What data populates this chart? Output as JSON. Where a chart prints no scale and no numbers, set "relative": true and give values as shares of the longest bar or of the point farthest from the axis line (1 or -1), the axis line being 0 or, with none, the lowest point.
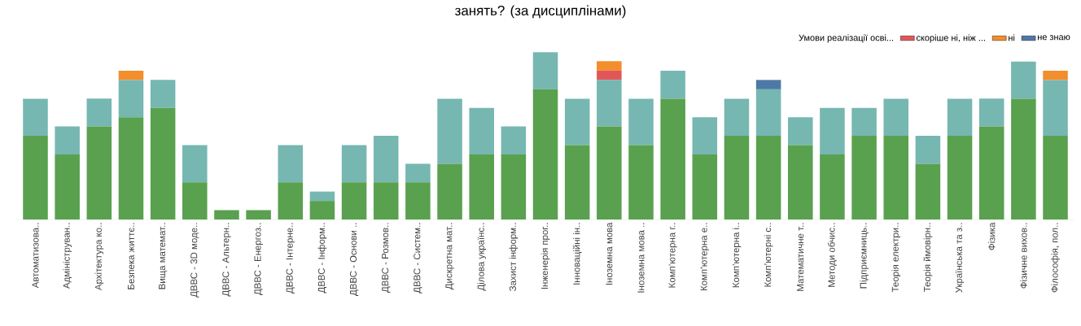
{
  "chart_data": {
    "type": "bar",
    "stacked": true,
    "relative": true,
    "title": "занять? (за дисциплінами)",
    "legend_title": "Умови реалізації осві...",
    "legend": "top right",
    "categories": [
      "Автоматизова..",
      "Адмініструван..",
      "Архітектура ко..",
      "Безпека життє..",
      "Вища математ..",
      "ДВВС - 3D моде..",
      "ДВВС - Альтерн..",
      "ДВВС - Енергоз..",
      "ДВВС - Інтерне..",
      "ДВВС - Інформ..",
      "ДВВС - Основи ..",
      "ДВВС - Розмов..",
      "ДВВС - Систем..",
      "Дискретна мат..",
      "Ділова українс..",
      "Захист інформ..",
      "Інженерія прог..",
      "Інноваційні ін..",
      "Іноземна мова",
      "Іноземна мова ..",
      "Комп’ютерна г..",
      "Комп’ютерна е..",
      "Комп’ютерна і..",
      "Комп’ютерні с..",
      "Математичне т..",
      "Методи обчис..",
      "Підприємниць..",
      "Теорія електри..",
      "Теорія ймовірн..",
      "Українська та з..",
      "Фізика",
      "Фізичне вихов..",
      "Філософія, пол.."
    ],
    "series": [
      {
        "color": "#59a14f",
        "values": [
          0.5,
          0.389,
          0.556,
          0.611,
          0.667,
          0.222,
          0.056,
          0.056,
          0.222,
          0.111,
          0.222,
          0.222,
          0.222,
          0.333,
          0.389,
          0.389,
          0.778,
          0.444,
          0.556,
          0.444,
          0.722,
          0.389,
          0.5,
          0.5,
          0.444,
          0.389,
          0.5,
          0.5,
          0.333,
          0.5,
          0.556,
          0.722,
          0.5
        ]
      },
      {
        "color": "#76b7b2",
        "values": [
          0.222,
          0.167,
          0.167,
          0.222,
          0.167,
          0.222,
          null,
          null,
          0.222,
          0.056,
          0.222,
          0.278,
          0.111,
          0.389,
          0.278,
          0.167,
          0.222,
          0.278,
          0.278,
          0.278,
          0.167,
          0.222,
          0.222,
          0.278,
          0.167,
          0.278,
          0.167,
          0.222,
          0.167,
          0.222,
          0.167,
          0.222,
          0.333
        ]
      },
      {
        "name": "скоріше ні, ніж ...",
        "color": "#e15759",
        "values": [
          null,
          null,
          null,
          null,
          null,
          null,
          null,
          null,
          null,
          null,
          null,
          null,
          null,
          null,
          null,
          null,
          null,
          null,
          0.056,
          null,
          null,
          null,
          null,
          null,
          null,
          null,
          null,
          null,
          null,
          null,
          null,
          null,
          null
        ]
      },
      {
        "name": "ні",
        "color": "#f28e2b",
        "values": [
          null,
          null,
          null,
          0.056,
          null,
          null,
          null,
          null,
          null,
          null,
          null,
          null,
          null,
          null,
          null,
          null,
          null,
          null,
          0.056,
          null,
          null,
          null,
          null,
          null,
          null,
          null,
          null,
          null,
          null,
          null,
          null,
          null,
          0.056
        ]
      },
      {
        "name": "не знаю",
        "color": "#4e79a7",
        "values": [
          null,
          null,
          null,
          null,
          null,
          null,
          null,
          null,
          null,
          null,
          null,
          null,
          null,
          null,
          null,
          null,
          null,
          null,
          null,
          null,
          null,
          null,
          null,
          0.056,
          null,
          null,
          null,
          null,
          null,
          null,
          null,
          null,
          null
        ]
      }
    ]
  }
}
